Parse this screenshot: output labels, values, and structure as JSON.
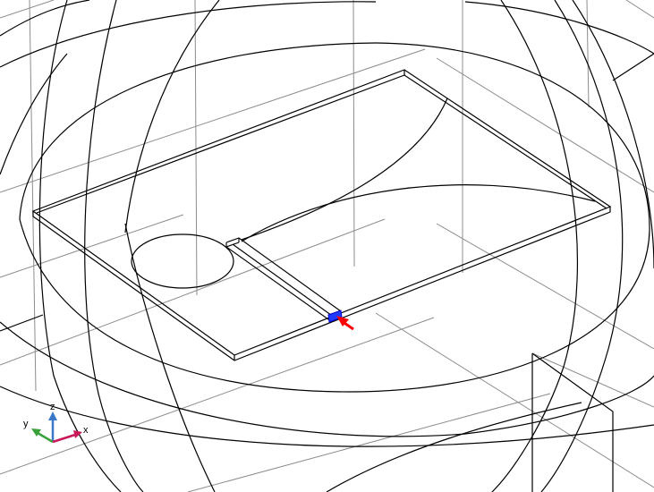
{
  "graphics": {
    "background_color": "#ffffff",
    "line_color": "#000000",
    "grid_color": "#808080",
    "highlight_color": "#0000ff",
    "port_arrow_color": "#ff0000"
  },
  "axis_triad": {
    "x_label": "x",
    "y_label": "y",
    "z_label": "z",
    "x_color": "#c8195a",
    "y_color": "#3aa03a",
    "z_color": "#3c78c8"
  }
}
